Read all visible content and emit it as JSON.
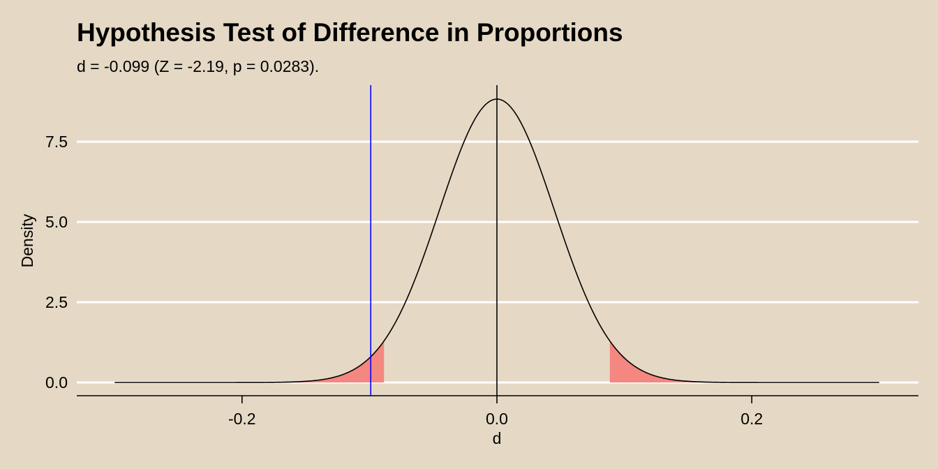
{
  "chart_data": {
    "type": "area",
    "title": "Hypothesis Test of Difference in Proportions",
    "subtitle": "d = -0.099 (Z = -2.19, p = 0.0283).",
    "xlabel": "d",
    "ylabel": "Density",
    "xlim": [
      -0.3,
      0.3
    ],
    "ylim": [
      0,
      9.2
    ],
    "x_ticks": [
      -0.2,
      0.0,
      0.2
    ],
    "x_tick_labels": [
      "-0.2",
      "0.0",
      "0.2"
    ],
    "y_ticks": [
      0.0,
      2.5,
      5.0,
      7.5
    ],
    "y_tick_labels": [
      "0.0",
      "2.5",
      "5.0",
      "7.5"
    ],
    "grid": "horizontal",
    "density_curve": {
      "distribution": "normal",
      "mean": 0.0,
      "sd": 0.0452,
      "x_range": [
        -0.3,
        0.3
      ],
      "color": "#000000"
    },
    "rejection_regions": [
      {
        "from": -0.16,
        "to": -0.0886,
        "color": "#f4877f"
      },
      {
        "from": 0.0886,
        "to": 0.16,
        "color": "#f4877f"
      }
    ],
    "reference_lines": [
      {
        "x": 0.0,
        "color": "#000000"
      },
      {
        "x": -0.099,
        "color": "#0000ff"
      }
    ],
    "colors": {
      "background": "#e5d9c5",
      "grid": "#ffffff",
      "shade": "#f4877f",
      "observed_line": "#0000ff"
    }
  }
}
